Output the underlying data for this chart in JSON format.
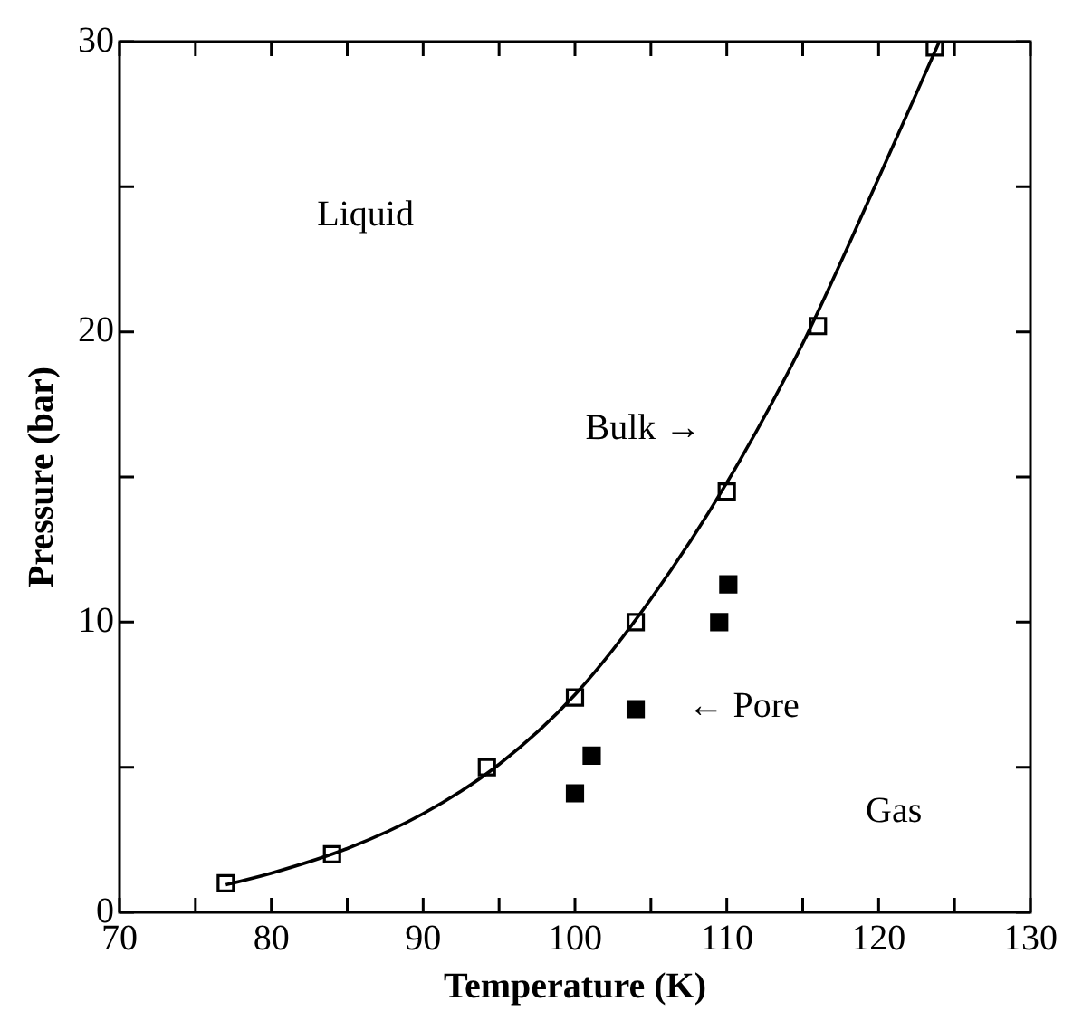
{
  "chart_data": {
    "type": "scatter",
    "xlabel": "Temperature (K)",
    "ylabel": "Pressure (bar)",
    "xlim": [
      70,
      130
    ],
    "ylim": [
      0,
      30
    ],
    "xticks": [
      70,
      {
        "value": 75,
        "label": null
      },
      80,
      {
        "value": 85,
        "label": null
      },
      90,
      {
        "value": 95,
        "label": null
      },
      100,
      {
        "value": 105,
        "label": null
      },
      110,
      {
        "value": 115,
        "label": null
      },
      120,
      {
        "value": 125,
        "label": null
      },
      130
    ],
    "yticks": [
      0,
      {
        "value": 5,
        "label": null
      },
      10,
      {
        "value": 15,
        "label": null
      },
      20,
      {
        "value": 25,
        "label": null
      },
      30
    ],
    "grid": false,
    "legend": false,
    "marker": "square",
    "series": [
      {
        "type": "line",
        "color": "#000000",
        "marker": "none",
        "x": [
          77,
          80,
          85,
          90,
          95,
          100,
          105,
          110,
          115,
          120,
          124
        ],
        "values": [
          0.95,
          1.35,
          2.2,
          3.4,
          5.1,
          7.5,
          10.8,
          14.8,
          19.6,
          25.3,
          30
        ]
      },
      {
        "color": "#000000",
        "x": [
          77,
          84,
          94.2,
          100,
          104,
          110,
          116,
          123.7
        ],
        "values": [
          1.0,
          2.0,
          5.0,
          7.4,
          10.0,
          14.5,
          20.2,
          29.8
        ]
      },
      {
        "color": "#000000",
        "x": [
          100,
          101.1,
          104,
          109.5,
          110.1
        ],
        "values": [
          4.1,
          5.4,
          7.0,
          10.0,
          11.3
        ]
      }
    ],
    "annotations": [
      "Liquid",
      "Gas",
      "Bulk →",
      "← Pore"
    ]
  }
}
